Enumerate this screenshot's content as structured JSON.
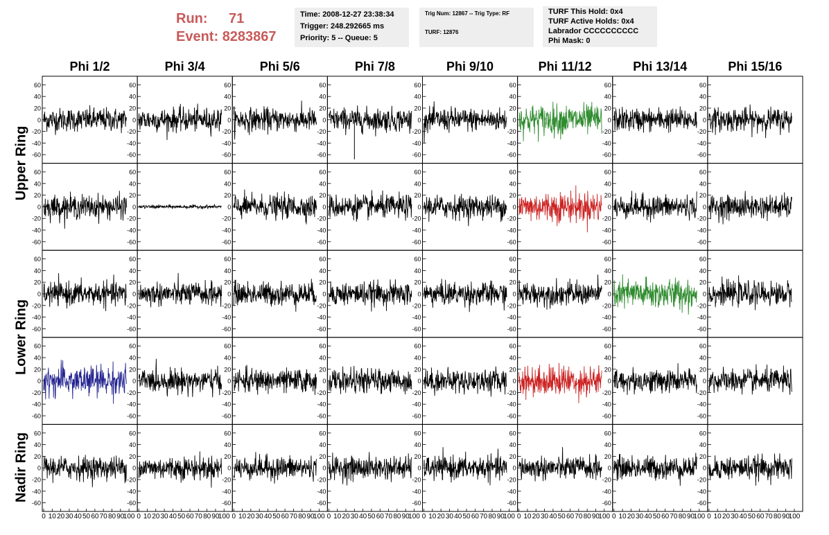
{
  "run": {
    "run_label": "Run:",
    "run_value": "71",
    "event_label": "Event:",
    "event_value": "8283867"
  },
  "info1": {
    "time": "Time: 2008-12-27 23:38:34",
    "trigger": "Trigger: 248.292665 ms",
    "priority": "Priority: 5 -- Queue: 5"
  },
  "info2": {
    "trig": "Trig Num: 12867 -- Trig Type: RF",
    "turf": "TURF: 12876"
  },
  "info3": {
    "hold": "TURF This Hold: 0x4",
    "active": "TURF Active Holds: 0x4",
    "labrador": "Labrador CCCCCCCCCC",
    "phimask": "Phi Mask: 0"
  },
  "columns": [
    "Phi 1/2",
    "Phi 3/4",
    "Phi 5/6",
    "Phi 7/8",
    "Phi 9/10",
    "Phi 11/12",
    "Phi 13/14",
    "Phi 15/16"
  ],
  "rings": [
    {
      "label": "Upper Ring",
      "rows": [
        0,
        1
      ]
    },
    {
      "label": "Lower Ring",
      "rows": [
        2,
        3
      ]
    },
    {
      "label": "Nadir Ring",
      "rows": [
        4
      ]
    }
  ],
  "chart_data": {
    "type": "line",
    "grid": "off",
    "rows": 5,
    "cols": 8,
    "xlim": [
      0,
      100
    ],
    "ylim": [
      -70,
      70
    ],
    "y_ticks": [
      -60,
      -40,
      -20,
      0,
      20,
      40,
      60
    ],
    "x_ticks": [
      0,
      10,
      20,
      30,
      40,
      50,
      60,
      70,
      80,
      90,
      100
    ],
    "colors": {
      "default": "#000000",
      "green": "#2e8b2e",
      "red": "#cc2222",
      "blue": "#22228f"
    },
    "highlighted_traces": [
      {
        "row": 0,
        "col": 5,
        "color": "green"
      },
      {
        "row": 1,
        "col": 5,
        "color": "red"
      },
      {
        "row": 2,
        "col": 6,
        "color": "green"
      },
      {
        "row": 3,
        "col": 0,
        "color": "blue"
      },
      {
        "row": 3,
        "col": 5,
        "color": "red"
      }
    ],
    "flat_traces": [
      {
        "row": 1,
        "col": 1
      }
    ],
    "spike_traces": [
      {
        "row": 0,
        "col": 3,
        "x": 30,
        "y": -68
      }
    ]
  }
}
